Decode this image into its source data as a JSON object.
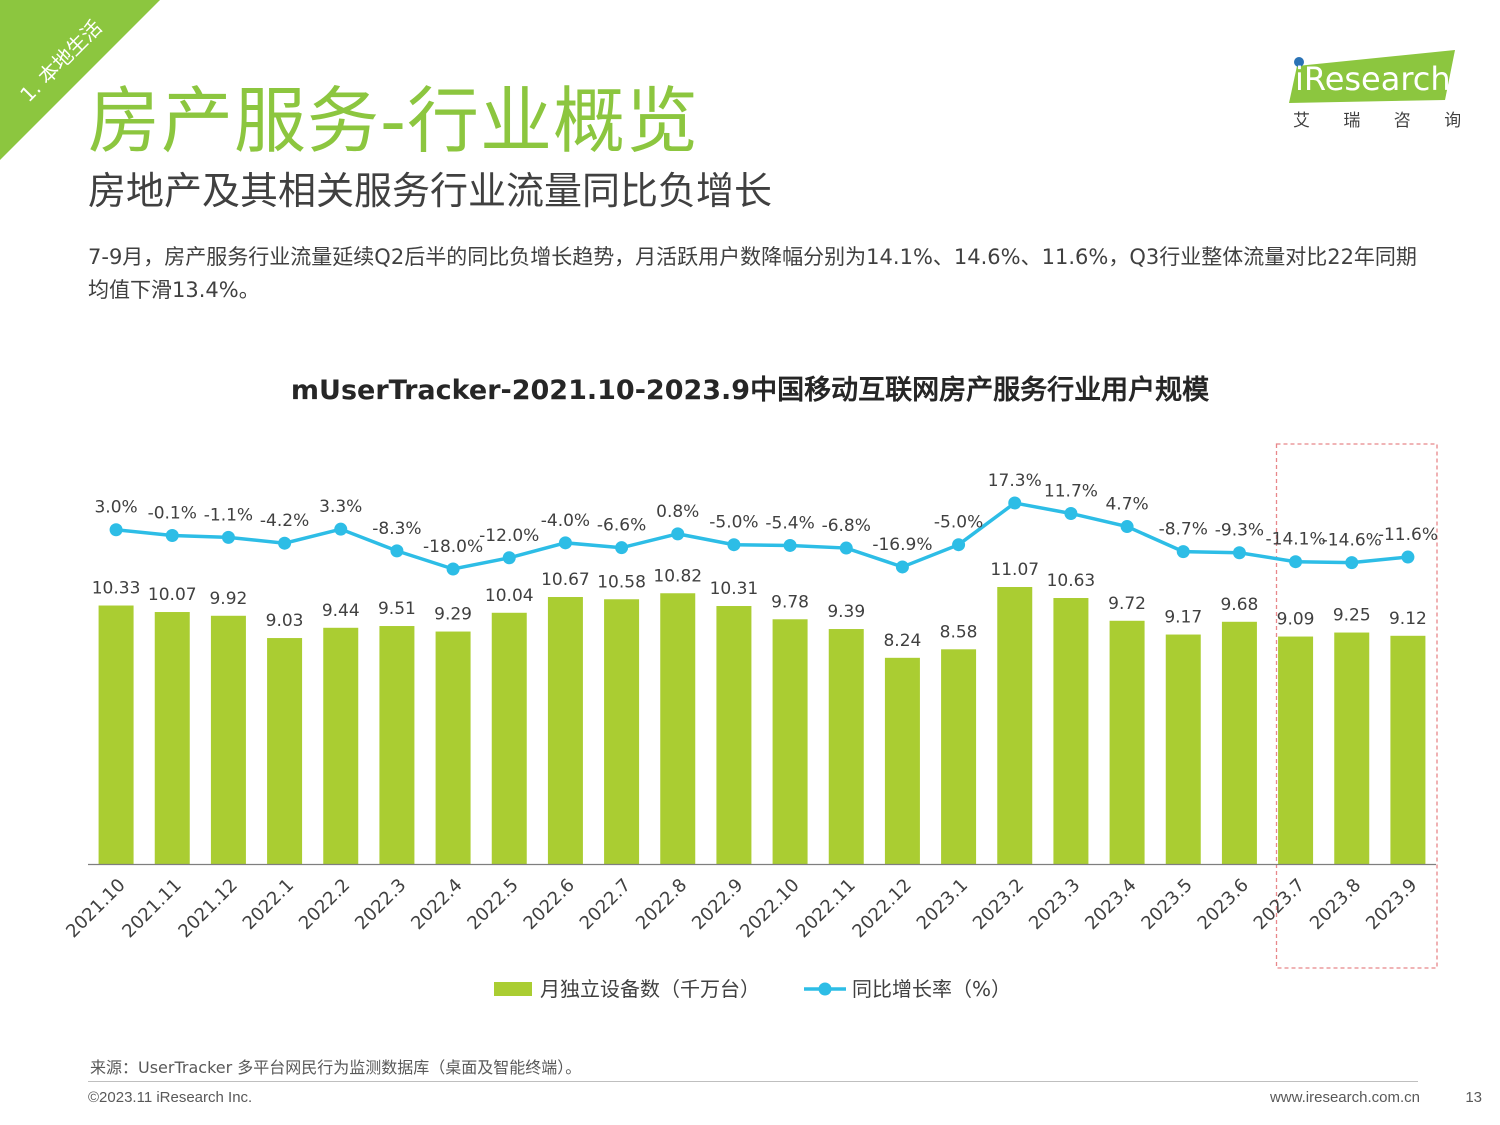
{
  "header": {
    "section_tag": "1. 本地生活",
    "title": "房产服务-行业概览",
    "subtitle": "房地产及其相关服务行业流量同比负增长",
    "description": "7-9月，房产服务行业流量延续Q2后半的同比负增长趋势，月活跃用户数降幅分别为14.1%、14.6%、11.6%，Q3行业整体流量对比22年同期均值下滑13.4%。"
  },
  "logo": {
    "brand": "iResearch",
    "cn": "艾 瑞 咨 询"
  },
  "colors": {
    "accent_green": "#8cc63f",
    "bar_green": "#aacd32",
    "line_blue": "#2dbde6",
    "highlight_red": "#e8878a"
  },
  "chart_data": {
    "type": "bar",
    "title": "mUserTracker-2021.10-2023.9中国移动互联网房产服务行业用户规模",
    "categories": [
      "2021.10",
      "2021.11",
      "2021.12",
      "2022.1",
      "2022.2",
      "2022.3",
      "2022.4",
      "2022.5",
      "2022.6",
      "2022.7",
      "2022.8",
      "2022.9",
      "2022.10",
      "2022.11",
      "2022.12",
      "2023.1",
      "2023.2",
      "2023.3",
      "2023.4",
      "2023.5",
      "2023.6",
      "2023.7",
      "2023.8",
      "2023.9"
    ],
    "series": [
      {
        "name": "月独立设备数（千万台）",
        "type": "bar",
        "values": [
          10.33,
          10.07,
          9.92,
          9.03,
          9.44,
          9.51,
          9.29,
          10.04,
          10.67,
          10.58,
          10.82,
          10.31,
          9.78,
          9.39,
          8.24,
          8.58,
          11.07,
          10.63,
          9.72,
          9.17,
          9.68,
          9.09,
          9.25,
          9.12
        ]
      },
      {
        "name": "同比增长率（%）",
        "type": "line",
        "values": [
          3.0,
          -0.1,
          -1.1,
          -4.2,
          3.3,
          -8.3,
          -18.0,
          -12.0,
          -4.0,
          -6.6,
          0.8,
          -5.0,
          -5.4,
          -6.8,
          -16.9,
          -5.0,
          17.3,
          11.7,
          4.7,
          -8.7,
          -9.3,
          -14.1,
          -14.6,
          -11.6
        ]
      }
    ],
    "bar_ylim": [
      0,
      11.07
    ],
    "line_ylim": [
      -18.0,
      17.3
    ],
    "highlight_range": [
      "2023.7",
      "2023.9"
    ],
    "legend_position": "bottom-center",
    "grid": false
  },
  "footer": {
    "source": "来源：UserTracker 多平台网民行为监测数据库（桌面及智能终端）。",
    "copyright": "©2023.11 iResearch Inc.",
    "website": "www.iresearch.com.cn",
    "page": "13"
  }
}
